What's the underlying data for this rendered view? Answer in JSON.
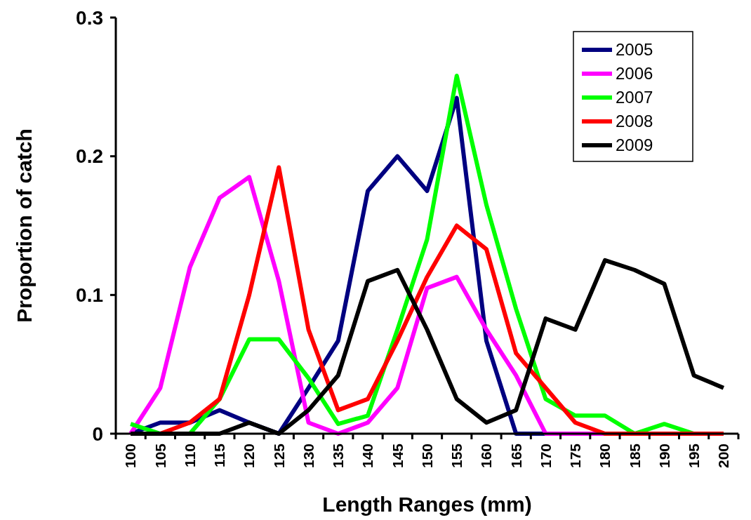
{
  "chart_data": {
    "type": "line",
    "xlabel": "Length Ranges (mm)",
    "ylabel": "Proportion of catch",
    "categories": [
      "100",
      "105",
      "110",
      "115",
      "120",
      "125",
      "130",
      "135",
      "140",
      "145",
      "150",
      "155",
      "160",
      "165",
      "170",
      "175",
      "180",
      "185",
      "190",
      "195",
      "200"
    ],
    "ylim": [
      0,
      0.3
    ],
    "yticks": [
      0,
      0.1,
      0.2,
      0.3
    ],
    "grid": false,
    "legend": "top right",
    "marker": "none",
    "series": [
      {
        "name": "2005",
        "color": "#000080",
        "values": [
          0,
          0.008,
          0.008,
          0.017,
          0.008,
          0,
          0.033,
          0.067,
          0.175,
          0.2,
          0.175,
          0.242,
          0.067,
          0,
          0,
          0,
          null,
          null,
          null,
          null,
          null
        ]
      },
      {
        "name": "2006",
        "color": "#ff00ff",
        "values": [
          0,
          0.033,
          0.12,
          0.17,
          0.185,
          0.11,
          0.008,
          0,
          0.008,
          0.033,
          0.105,
          0.113,
          0.075,
          0.042,
          0,
          0,
          0,
          0,
          null,
          null,
          null
        ]
      },
      {
        "name": "2007",
        "color": "#00ff00",
        "values": [
          0.007,
          0,
          0,
          0.025,
          0.068,
          0.068,
          0.04,
          0.007,
          0.013,
          0.075,
          0.14,
          0.258,
          0.165,
          0.09,
          0.025,
          0.013,
          0.013,
          0,
          0.007,
          0,
          0
        ]
      },
      {
        "name": "2008",
        "color": "#ff0000",
        "values": [
          0,
          0,
          0.008,
          0.025,
          0.1,
          0.192,
          0.075,
          0.017,
          0.025,
          0.067,
          0.113,
          0.15,
          0.133,
          0.058,
          0.033,
          0.008,
          0,
          0,
          0,
          0,
          0
        ]
      },
      {
        "name": "2009",
        "color": "#000000",
        "values": [
          0,
          0,
          0,
          0,
          0.008,
          0,
          0.017,
          0.042,
          0.11,
          0.118,
          0.075,
          0.025,
          0.008,
          0.017,
          0.083,
          0.075,
          0.125,
          0.118,
          0.108,
          0.042,
          0.033
        ]
      }
    ]
  }
}
